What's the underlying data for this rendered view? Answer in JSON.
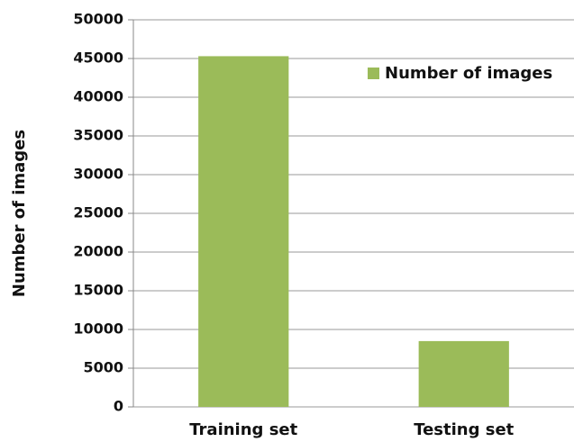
{
  "chart_data": {
    "type": "bar",
    "categories": [
      "Training set",
      "Testing set"
    ],
    "series": [
      {
        "name": "Number of images",
        "color": "#9bbb59",
        "values": [
          45300,
          8500
        ]
      }
    ],
    "ylabel": "Number of images",
    "ylim": [
      0,
      50000
    ],
    "yticks": [
      0,
      5000,
      10000,
      15000,
      20000,
      25000,
      30000,
      35000,
      40000,
      45000,
      50000
    ],
    "grid": true,
    "legend": "upper right"
  }
}
